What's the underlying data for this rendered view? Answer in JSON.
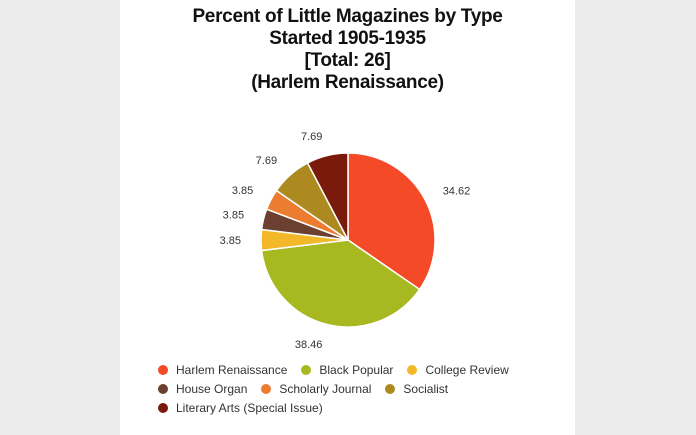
{
  "chart_data": {
    "type": "pie",
    "title_lines": [
      "Percent of Little Magazines by Type",
      "Started 1905-1935",
      "[Total: 26]",
      "(Harlem Renaissance)"
    ],
    "slices": [
      {
        "name": "Harlem Renaissance",
        "value": 34.62,
        "label": "34.62",
        "color": "#f54a28"
      },
      {
        "name": "Black Popular",
        "value": 38.46,
        "label": "38.46",
        "color": "#a8b820"
      },
      {
        "name": "College Review",
        "value": 3.85,
        "label": "3.85",
        "color": "#f2b827"
      },
      {
        "name": "House Organ",
        "value": 3.85,
        "label": "3.85",
        "color": "#6b4030"
      },
      {
        "name": "Scholarly Journal",
        "value": 3.85,
        "label": "3.85",
        "color": "#ec7d30"
      },
      {
        "name": "Socialist",
        "value": 7.69,
        "label": "7.69",
        "color": "#ad8a20"
      },
      {
        "name": "Literary Arts (Special Issue)",
        "value": 7.69,
        "label": "7.69",
        "color": "#7a1a0a"
      }
    ],
    "legend_rows": [
      [
        0,
        1,
        2
      ],
      [
        3,
        4,
        5
      ],
      [
        6
      ]
    ],
    "legend_placement": "bottom"
  }
}
